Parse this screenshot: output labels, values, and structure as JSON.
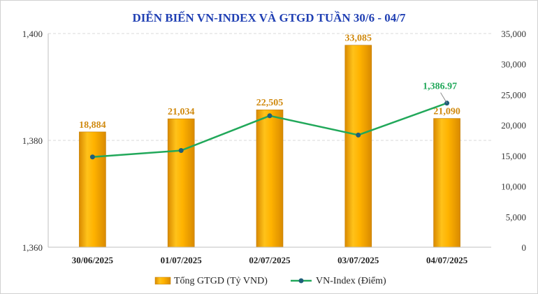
{
  "chart_data": {
    "type": "bar+line",
    "title": "DIỄN BIẾN VN-INDEX VÀ GTGD TUẦN 30/6 - 04/7",
    "categories": [
      "30/06/2025",
      "01/07/2025",
      "02/07/2025",
      "03/07/2025",
      "04/07/2025"
    ],
    "series": [
      {
        "name": "Tổng GTGD (Tỷ VND)",
        "type": "bar",
        "axis": "right",
        "values": [
          18884,
          21034,
          22505,
          33085,
          21090
        ],
        "labels": [
          "18,884",
          "21,034",
          "22,505",
          "33,085",
          "21,090"
        ]
      },
      {
        "name": "VN-Index (Điểm)",
        "type": "line",
        "axis": "left",
        "values": [
          1376.9,
          1378.1,
          1384.6,
          1381.0,
          1386.97
        ],
        "last_label": "1,386.97"
      }
    ],
    "y_left": {
      "min": 1360,
      "max": 1400,
      "ticks": [
        1360,
        1380,
        1400
      ],
      "tick_labels": [
        "1,360",
        "1,380",
        "1,400"
      ]
    },
    "y_right": {
      "min": 0,
      "max": 35000,
      "ticks": [
        0,
        5000,
        10000,
        15000,
        20000,
        25000,
        30000,
        35000
      ],
      "tick_labels": [
        "0",
        "5,000",
        "10,000",
        "15,000",
        "20,000",
        "25,000",
        "30,000",
        "35,000"
      ]
    },
    "grid": true,
    "legend_position": "bottom",
    "colors": {
      "title": "#1f3fb3",
      "bar_fill": "#f5a300",
      "bar_label": "#d08a10",
      "line": "#21a85a",
      "line_marker": "#1f5e7a",
      "line_label": "#21a85a",
      "grid": "#d9d9d9",
      "axis_text": "#333333"
    }
  }
}
